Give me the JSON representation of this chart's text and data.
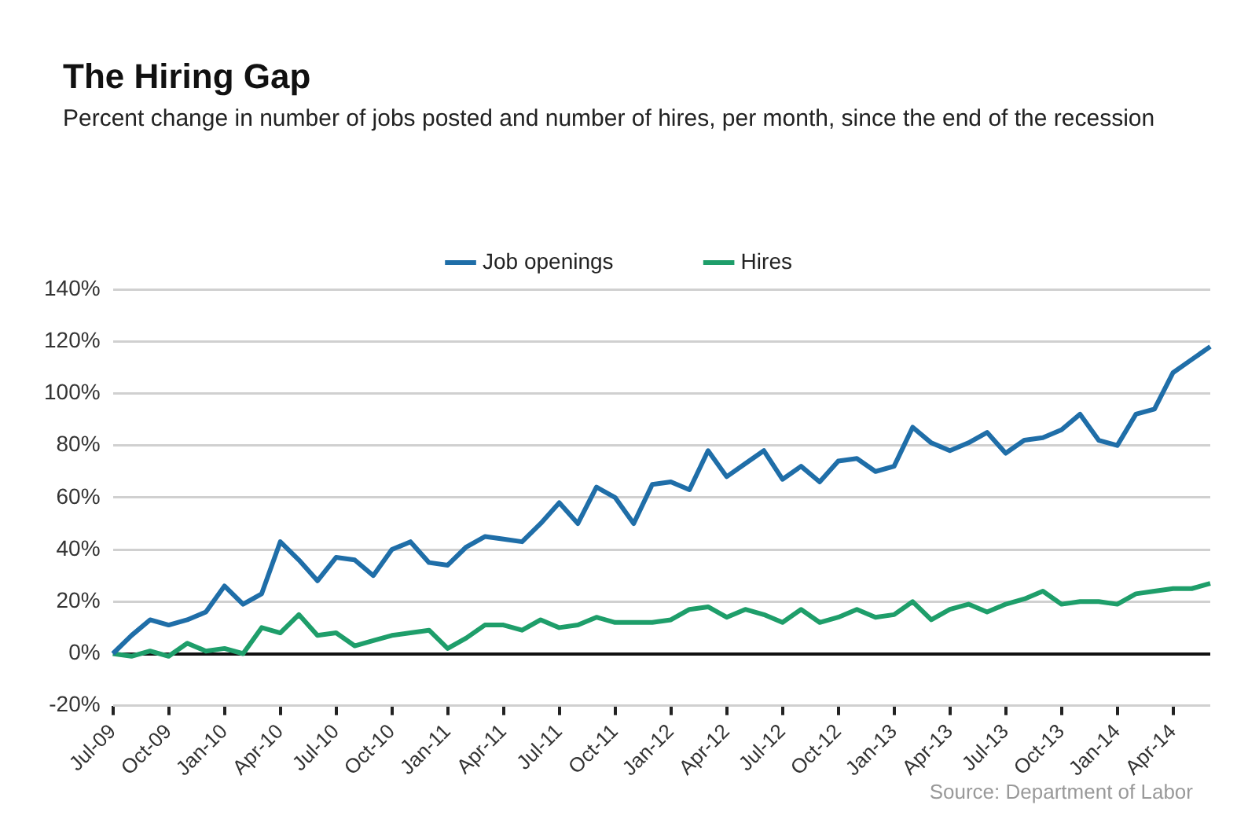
{
  "chart_data": {
    "type": "line",
    "title": "The Hiring Gap",
    "subtitle": "Percent change in number of jobs posted and number of hires, per month, since the end of the recession",
    "categories": [
      "Jul-09",
      null,
      null,
      "Oct-09",
      null,
      null,
      "Jan-10",
      null,
      null,
      "Apr-10",
      null,
      null,
      "Jul-10",
      null,
      null,
      "Oct-10",
      null,
      null,
      "Jan-11",
      null,
      null,
      "Apr-11",
      null,
      null,
      "Jul-11",
      null,
      null,
      "Oct-11",
      null,
      null,
      "Jan-12",
      null,
      null,
      "Apr-12",
      null,
      null,
      "Jul-12",
      null,
      null,
      "Oct-12",
      null,
      null,
      "Jan-13",
      null,
      null,
      "Apr-13",
      null,
      null,
      "Jul-13",
      null,
      null,
      "Oct-13",
      null,
      null,
      "Jan-14",
      null,
      null,
      "Apr-14",
      null,
      null
    ],
    "series": [
      {
        "name": "Job openings",
        "color": "#1f6ea8",
        "values": [
          0,
          7,
          13,
          11,
          13,
          16,
          26,
          19,
          23,
          43,
          36,
          28,
          37,
          36,
          30,
          40,
          43,
          35,
          34,
          41,
          45,
          44,
          43,
          50,
          58,
          50,
          64,
          60,
          50,
          65,
          66,
          63,
          78,
          68,
          73,
          78,
          67,
          72,
          66,
          74,
          75,
          70,
          72,
          87,
          81,
          78,
          81,
          85,
          77,
          82,
          83,
          86,
          92,
          82,
          80,
          92,
          94,
          108,
          113,
          118
        ]
      },
      {
        "name": "Hires",
        "color": "#1e9e6a",
        "values": [
          0,
          -1,
          1,
          -1,
          4,
          1,
          2,
          0,
          10,
          8,
          15,
          7,
          8,
          3,
          5,
          7,
          8,
          9,
          2,
          6,
          11,
          11,
          9,
          13,
          10,
          11,
          14,
          12,
          12,
          12,
          13,
          17,
          18,
          14,
          17,
          15,
          12,
          17,
          12,
          14,
          17,
          14,
          15,
          20,
          13,
          17,
          19,
          16,
          19,
          21,
          24,
          19,
          20,
          20,
          19,
          23,
          24,
          25,
          25,
          27
        ]
      }
    ],
    "ylim": [
      -20,
      140
    ],
    "yticks": [
      {
        "value": -20,
        "label": "-20%"
      },
      {
        "value": 0,
        "label": "0%"
      },
      {
        "value": 20,
        "label": "20%"
      },
      {
        "value": 40,
        "label": "40%"
      },
      {
        "value": 60,
        "label": "60%"
      },
      {
        "value": 80,
        "label": "80%"
      },
      {
        "value": 100,
        "label": "100%"
      },
      {
        "value": 120,
        "label": "120%"
      },
      {
        "value": 140,
        "label": "140%"
      }
    ],
    "grid": "y",
    "legend": "top",
    "marker": "none",
    "line_style": "solid",
    "annotations": [
      "Source: Department of Labor"
    ]
  }
}
